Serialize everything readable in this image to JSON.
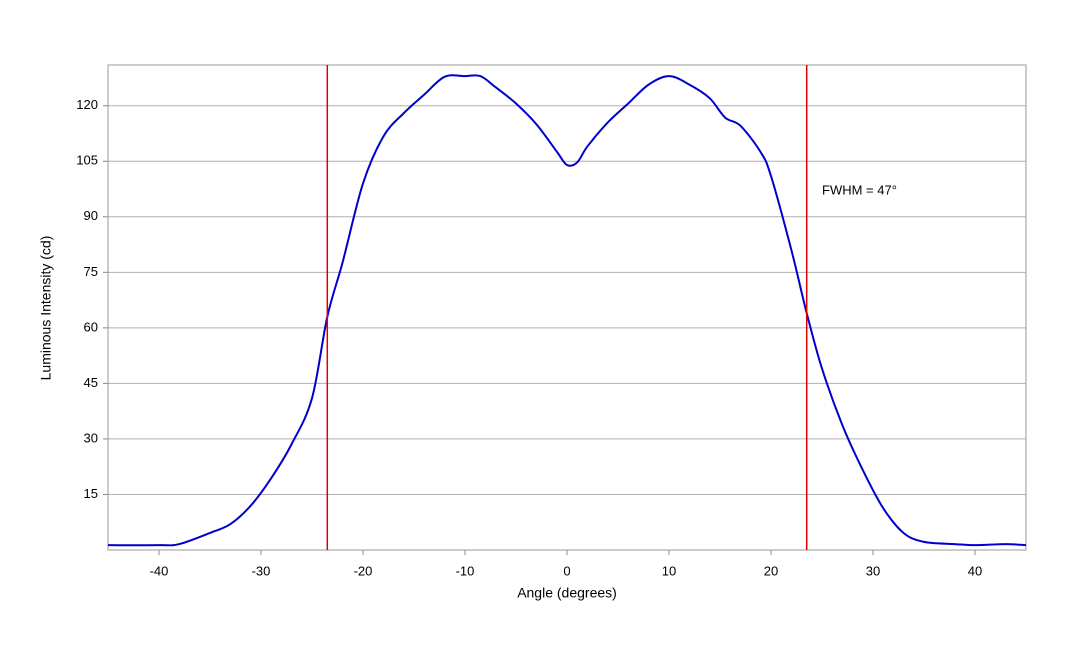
{
  "chart_data": {
    "type": "line",
    "x_label": "Angle (degrees)",
    "y_label": "Luminous Intensity (cd)",
    "annotation": "FWHM = 47°",
    "annotation_x": 25,
    "annotation_y": 97,
    "x": [
      -45,
      -40,
      -38,
      -35,
      -33,
      -31,
      -29,
      -27,
      -25,
      -23.5,
      -22,
      -20,
      -18,
      -16,
      -14,
      -12,
      -10,
      -8.5,
      -7,
      -5,
      -3,
      -1,
      0,
      1,
      2,
      4,
      6,
      8,
      10,
      12,
      14,
      15.5,
      17,
      19,
      20,
      22,
      23.5,
      25,
      27,
      29,
      31,
      33,
      35,
      38,
      40,
      43,
      45
    ],
    "series": [
      {
        "name": "Luminous Intensity",
        "color": "#0000cc",
        "values": [
          1.3,
          1.3,
          1.6,
          4.6,
          7,
          12,
          19.4,
          28.6,
          41,
          63,
          77.7,
          99,
          111.7,
          118,
          123,
          127.8,
          128,
          128,
          125,
          120.6,
          115,
          107.6,
          104,
          104.7,
          109,
          115.5,
          120.6,
          125.7,
          128,
          125.7,
          122,
          116.8,
          114.6,
          107.4,
          101,
          81,
          64,
          49,
          33.7,
          21.6,
          11.3,
          4.6,
          2.2,
          1.6,
          1.3,
          1.6,
          1.3
        ]
      }
    ],
    "vlines": [
      -23.5,
      23.5
    ],
    "vline_color": "#dd0000",
    "xlim": [
      -45,
      45
    ],
    "ylim": [
      0,
      131
    ],
    "xticks": [
      -40,
      -30,
      -20,
      -10,
      0,
      10,
      20,
      30,
      40
    ],
    "yticks": [
      15,
      30,
      45,
      60,
      75,
      90,
      105,
      120
    ],
    "grid": true
  }
}
